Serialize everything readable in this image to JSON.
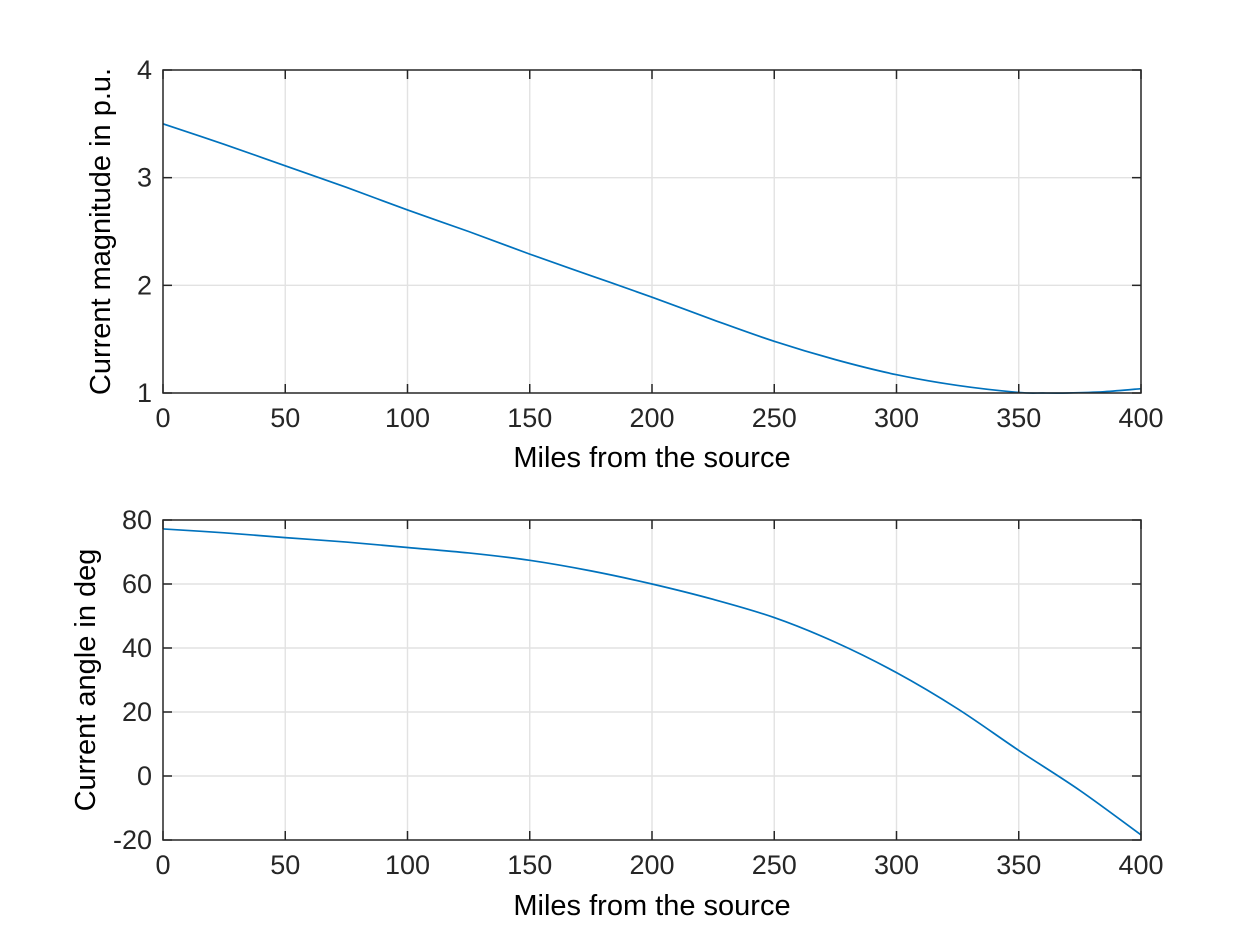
{
  "chart_data": [
    {
      "type": "line",
      "title": "",
      "xlabel": "Miles from the source",
      "ylabel": "Current magnitude in p.u.",
      "xlim": [
        0,
        400
      ],
      "ylim": [
        1,
        4
      ],
      "xticks": [
        0,
        50,
        100,
        150,
        200,
        250,
        300,
        350,
        400
      ],
      "yticks": [
        1,
        2,
        3,
        4
      ],
      "grid": true,
      "legend": "none",
      "series": [
        {
          "name": "current-magnitude",
          "x": [
            0,
            25,
            50,
            75,
            100,
            125,
            150,
            175,
            200,
            225,
            250,
            275,
            300,
            325,
            350,
            360,
            370,
            385,
            400
          ],
          "y": [
            3.5,
            3.31,
            3.11,
            2.91,
            2.7,
            2.5,
            2.29,
            2.09,
            1.89,
            1.68,
            1.48,
            1.31,
            1.17,
            1.07,
            1.005,
            1.0,
            1.0,
            1.012,
            1.04
          ]
        }
      ]
    },
    {
      "type": "line",
      "title": "",
      "xlabel": "Miles from the source",
      "ylabel": "Current angle in deg",
      "xlim": [
        0,
        400
      ],
      "ylim": [
        -20,
        80
      ],
      "xticks": [
        0,
        50,
        100,
        150,
        200,
        250,
        300,
        350,
        400
      ],
      "yticks": [
        -20,
        0,
        20,
        40,
        60,
        80
      ],
      "grid": true,
      "legend": "none",
      "series": [
        {
          "name": "current-angle",
          "x": [
            0,
            25,
            50,
            75,
            100,
            125,
            150,
            175,
            200,
            225,
            250,
            275,
            300,
            325,
            350,
            375,
            400
          ],
          "y": [
            77.2,
            76.0,
            74.5,
            73.1,
            71.4,
            69.7,
            67.4,
            64.1,
            60.0,
            55.2,
            49.5,
            41.8,
            32.3,
            21.0,
            8.0,
            -4.5,
            -18.4
          ]
        }
      ]
    }
  ],
  "colors": {
    "line": "#0072BD",
    "axis": "#262626",
    "grid": "#e2e2e2",
    "tick_label": "#262626",
    "axis_label": "#000000",
    "background": "#ffffff"
  }
}
